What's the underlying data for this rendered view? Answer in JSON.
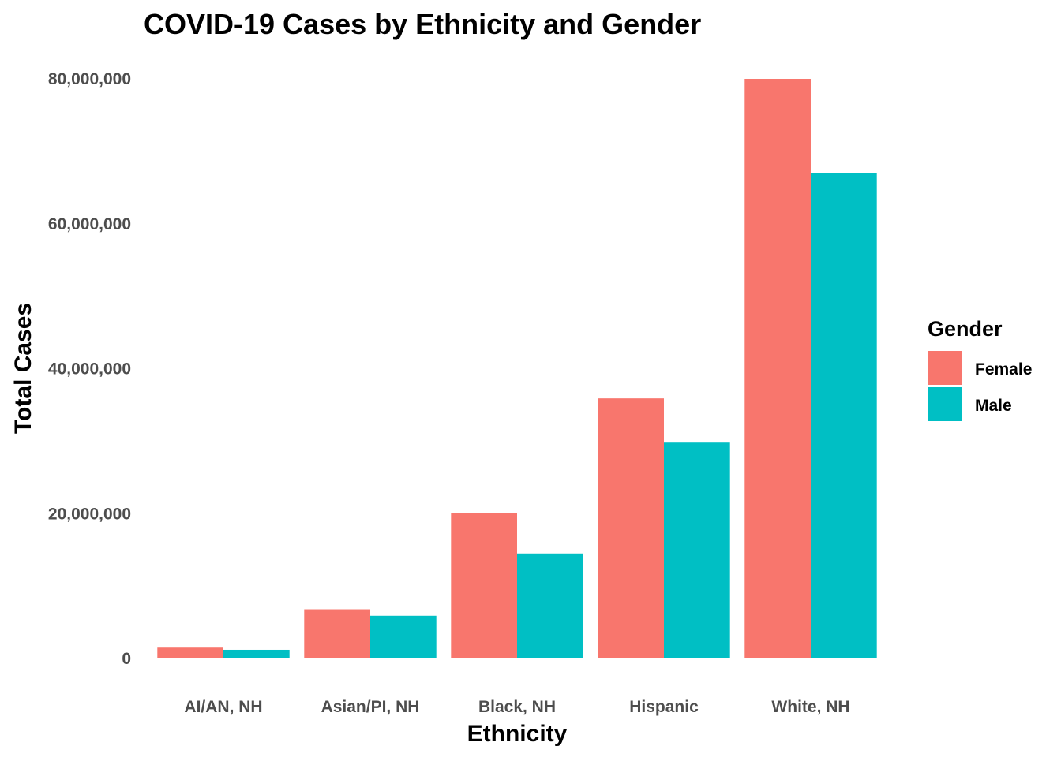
{
  "chart_data": {
    "type": "bar",
    "title": "COVID-19 Cases by Ethnicity and Gender",
    "xlabel": "Ethnicity",
    "ylabel": "Total Cases",
    "categories": [
      "AI/AN, NH",
      "Asian/PI, NH",
      "Black, NH",
      "Hispanic",
      "White, NH"
    ],
    "series": [
      {
        "name": "Female",
        "color": "#F8766D",
        "values": [
          1500000,
          6800000,
          20100000,
          35900000,
          80000000
        ]
      },
      {
        "name": "Male",
        "color": "#00BFC4",
        "values": [
          1200000,
          5900000,
          14500000,
          29800000,
          67000000
        ]
      }
    ],
    "ylim": [
      0,
      80000000
    ],
    "y_ticks": [
      0,
      20000000,
      40000000,
      60000000,
      80000000
    ],
    "y_tick_labels": [
      "0",
      "20,000,000",
      "40,000,000",
      "60,000,000",
      "80,000,000"
    ],
    "grid": false,
    "legend": {
      "title": "Gender",
      "placement": "right"
    }
  }
}
